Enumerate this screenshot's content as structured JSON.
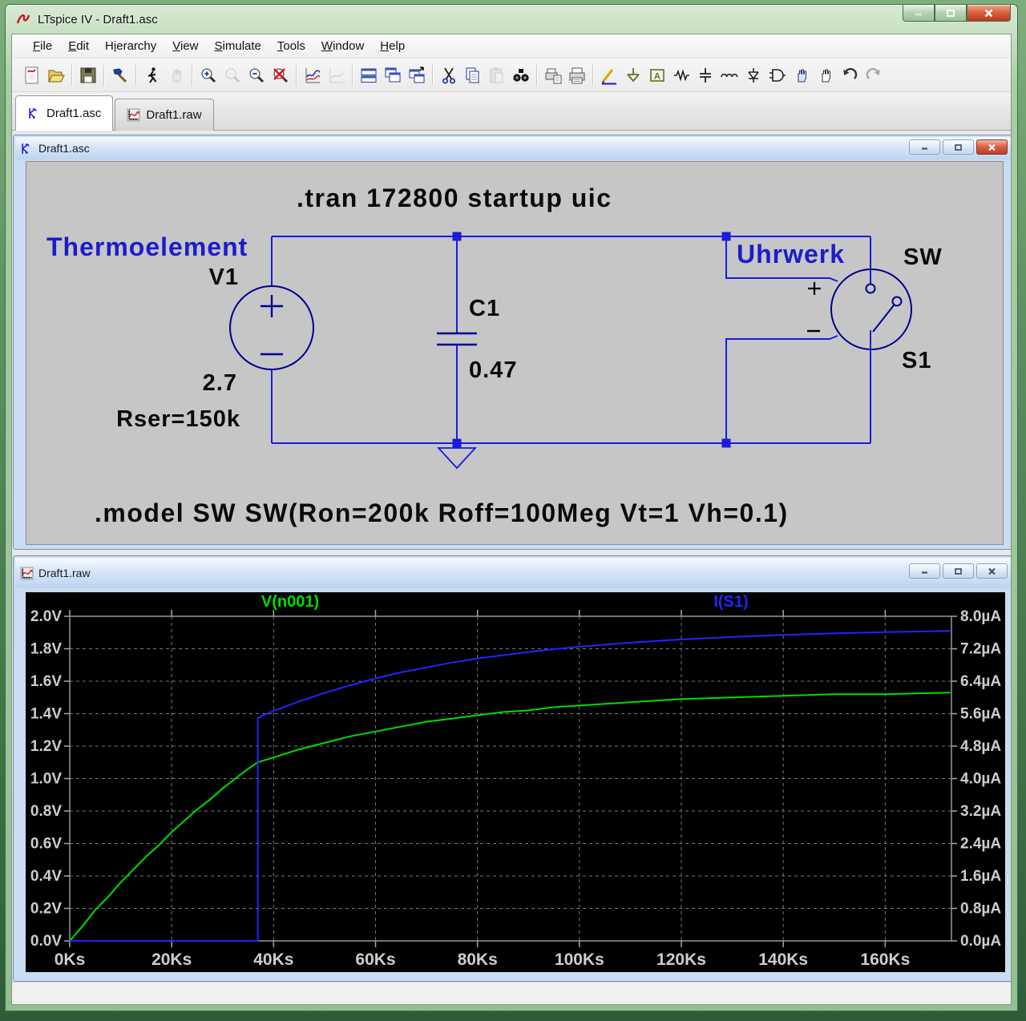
{
  "window": {
    "title": "LTspice IV - Draft1.asc"
  },
  "menu": {
    "items": [
      {
        "label": "File",
        "accel": 0
      },
      {
        "label": "Edit",
        "accel": 0
      },
      {
        "label": "Hierarchy",
        "accel": 1
      },
      {
        "label": "View",
        "accel": 0
      },
      {
        "label": "Simulate",
        "accel": 0
      },
      {
        "label": "Tools",
        "accel": 0
      },
      {
        "label": "Window",
        "accel": 0
      },
      {
        "label": "Help",
        "accel": 0
      }
    ]
  },
  "toolbar": {
    "buttons": [
      {
        "name": "new-schematic"
      },
      {
        "name": "open"
      },
      {
        "name": "save",
        "sep": true
      },
      {
        "name": "control-panel",
        "sep": true
      },
      {
        "name": "run",
        "sep": true
      },
      {
        "name": "halt",
        "disabled": true
      },
      {
        "name": "zoom-in",
        "sep": true
      },
      {
        "name": "zoom-back",
        "disabled": true
      },
      {
        "name": "zoom-out"
      },
      {
        "name": "zoom-full-extents"
      },
      {
        "name": "autorange-y-axis",
        "sep": true
      },
      {
        "name": "plot-settings",
        "disabled": true
      },
      {
        "name": "tile-horizontal",
        "sep": true
      },
      {
        "name": "cascade-windows"
      },
      {
        "name": "activate-window"
      },
      {
        "name": "cut",
        "sep": true
      },
      {
        "name": "copy"
      },
      {
        "name": "paste",
        "disabled": true
      },
      {
        "name": "find"
      },
      {
        "name": "print-preview",
        "sep": true
      },
      {
        "name": "print"
      },
      {
        "name": "draw-wire",
        "sep": true
      },
      {
        "name": "place-ground"
      },
      {
        "name": "place-net-label"
      },
      {
        "name": "place-resistor"
      },
      {
        "name": "place-capacitor"
      },
      {
        "name": "place-inductor"
      },
      {
        "name": "place-diode"
      },
      {
        "name": "place-component"
      },
      {
        "name": "move"
      },
      {
        "name": "drag"
      },
      {
        "name": "undo"
      },
      {
        "name": "redo",
        "disabled": true
      }
    ]
  },
  "tabs": [
    {
      "label": "Draft1.asc",
      "active": true
    },
    {
      "label": "Draft1.raw",
      "active": false
    }
  ],
  "schematic": {
    "window_title": "Draft1.asc",
    "tran_directive": ".tran 172800 startup uic",
    "model_directive": ".model SW SW(Ron=200k Roff=100Meg Vt=1 Vh=0.1)",
    "components": {
      "v1": {
        "designator": "V1",
        "value": "2.7",
        "series_resistance": "Rser=150k",
        "annotation": "Thermoelement"
      },
      "c1": {
        "designator": "C1",
        "value": "0.47"
      },
      "s1": {
        "designator": "S1",
        "model_name": "SW",
        "annotation": "Uhrwerk"
      }
    }
  },
  "waveform": {
    "window_title": "Draft1.raw"
  },
  "status_bar": {
    "text": ""
  },
  "chart_data": {
    "type": "line",
    "title": "",
    "x_unit": "s (plotted in Ks)",
    "x_ticks": [
      "0Ks",
      "20Ks",
      "40Ks",
      "60Ks",
      "80Ks",
      "100Ks",
      "120Ks",
      "140Ks",
      "160Ks"
    ],
    "x_tick_values": [
      0,
      20,
      40,
      60,
      80,
      100,
      120,
      140,
      160
    ],
    "xlim": [
      0,
      173
    ],
    "grid": true,
    "legend_position": "top",
    "left_axis": {
      "unit": "V",
      "min": 0,
      "max": 2.0,
      "tick_step": 0.2,
      "ticks": [
        "2.0V",
        "1.8V",
        "1.6V",
        "1.4V",
        "1.2V",
        "1.0V",
        "0.8V",
        "0.6V",
        "0.4V",
        "0.2V",
        "0.0V"
      ]
    },
    "right_axis": {
      "unit": "µA",
      "min": 0,
      "max": 8.0,
      "tick_step": 0.8,
      "ticks": [
        "8.0µA",
        "7.2µA",
        "6.4µA",
        "5.6µA",
        "4.8µA",
        "4.0µA",
        "3.2µA",
        "2.4µA",
        "1.6µA",
        "0.8µA",
        "0.0µA"
      ]
    },
    "series": [
      {
        "name": "V(n001)",
        "color": "#00dc00",
        "axis": "left",
        "points": [
          [
            0,
            0
          ],
          [
            2.5,
            0.09
          ],
          [
            5,
            0.19
          ],
          [
            7.5,
            0.27
          ],
          [
            10,
            0.36
          ],
          [
            12.5,
            0.44
          ],
          [
            15,
            0.52
          ],
          [
            17.5,
            0.59
          ],
          [
            20,
            0.67
          ],
          [
            22.5,
            0.74
          ],
          [
            25,
            0.81
          ],
          [
            27.5,
            0.87
          ],
          [
            30,
            0.94
          ],
          [
            32.5,
            1.0
          ],
          [
            35,
            1.06
          ],
          [
            36.9,
            1.1
          ],
          [
            40,
            1.13
          ],
          [
            45,
            1.18
          ],
          [
            50,
            1.22
          ],
          [
            55,
            1.26
          ],
          [
            60,
            1.29
          ],
          [
            65,
            1.32
          ],
          [
            70,
            1.35
          ],
          [
            75,
            1.37
          ],
          [
            80,
            1.39
          ],
          [
            85,
            1.41
          ],
          [
            90,
            1.42
          ],
          [
            95,
            1.44
          ],
          [
            100,
            1.45
          ],
          [
            110,
            1.47
          ],
          [
            120,
            1.49
          ],
          [
            130,
            1.5
          ],
          [
            140,
            1.51
          ],
          [
            150,
            1.52
          ],
          [
            160,
            1.52
          ],
          [
            172.8,
            1.53
          ]
        ]
      },
      {
        "name": "I(S1)",
        "color": "#2424ff",
        "axis": "right",
        "points": [
          [
            0,
            0
          ],
          [
            36.9,
            0
          ],
          [
            36.9,
            5.5
          ],
          [
            40,
            5.67
          ],
          [
            45,
            5.9
          ],
          [
            50,
            6.11
          ],
          [
            55,
            6.3
          ],
          [
            60,
            6.47
          ],
          [
            65,
            6.62
          ],
          [
            70,
            6.74
          ],
          [
            75,
            6.86
          ],
          [
            80,
            6.96
          ],
          [
            85,
            7.04
          ],
          [
            90,
            7.12
          ],
          [
            95,
            7.19
          ],
          [
            100,
            7.25
          ],
          [
            110,
            7.35
          ],
          [
            120,
            7.43
          ],
          [
            130,
            7.49
          ],
          [
            140,
            7.54
          ],
          [
            150,
            7.58
          ],
          [
            160,
            7.61
          ],
          [
            172.8,
            7.64
          ]
        ]
      }
    ]
  }
}
